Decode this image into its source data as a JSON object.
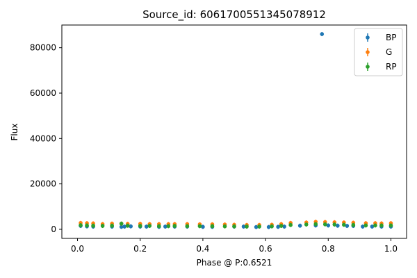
{
  "chart_data": {
    "type": "scatter",
    "title": "Source_id: 6061700551345078912",
    "xlabel": "Phase @ P:0.6521",
    "ylabel": "Flux",
    "xlim": [
      -0.05,
      1.05
    ],
    "ylim": [
      -4000,
      90000
    ],
    "xticks": [
      "0.0",
      "0.2",
      "0.4",
      "0.6",
      "0.8",
      "1.0"
    ],
    "xtick_values": [
      0.0,
      0.2,
      0.4,
      0.6,
      0.8,
      1.0
    ],
    "yticks": [
      "0",
      "20000",
      "40000",
      "60000",
      "80000"
    ],
    "ytick_values": [
      0,
      20000,
      40000,
      60000,
      80000
    ],
    "grid": false,
    "legend_position": "top-right",
    "series": [
      {
        "name": "BP",
        "color": "#1f77b4",
        "x": [
          0.01,
          0.03,
          0.05,
          0.11,
          0.14,
          0.15,
          0.17,
          0.2,
          0.22,
          0.26,
          0.28,
          0.31,
          0.35,
          0.4,
          0.43,
          0.5,
          0.53,
          0.57,
          0.61,
          0.64,
          0.66,
          0.71,
          0.76,
          0.78,
          0.8,
          0.83,
          0.86,
          0.88,
          0.91,
          0.94,
          0.97,
          1.0
        ],
        "y": [
          1500,
          1300,
          1200,
          1200,
          1100,
          1200,
          1300,
          1200,
          1200,
          1100,
          1200,
          1200,
          1200,
          1100,
          1100,
          1200,
          1200,
          1000,
          1000,
          1100,
          1200,
          1600,
          1700,
          86000,
          1700,
          1600,
          1500,
          1500,
          1200,
          1200,
          1200,
          1200
        ]
      },
      {
        "name": "G",
        "color": "#ff7f0e",
        "x": [
          0.01,
          0.03,
          0.05,
          0.08,
          0.11,
          0.14,
          0.16,
          0.2,
          0.23,
          0.26,
          0.29,
          0.31,
          0.35,
          0.39,
          0.43,
          0.47,
          0.5,
          0.54,
          0.58,
          0.62,
          0.65,
          0.68,
          0.73,
          0.76,
          0.79,
          0.82,
          0.85,
          0.88,
          0.92,
          0.95,
          0.97,
          1.0
        ],
        "y": [
          2800,
          2700,
          2600,
          2300,
          2500,
          2500,
          2400,
          2400,
          2300,
          2300,
          2300,
          2300,
          2300,
          2200,
          2200,
          2100,
          2000,
          1900,
          1900,
          2000,
          2300,
          2800,
          3000,
          3300,
          3200,
          3100,
          3000,
          2900,
          2700,
          2700,
          2600,
          2700
        ]
      },
      {
        "name": "RP",
        "color": "#2ca02c",
        "x": [
          0.01,
          0.03,
          0.05,
          0.08,
          0.11,
          0.14,
          0.16,
          0.2,
          0.23,
          0.26,
          0.29,
          0.31,
          0.35,
          0.39,
          0.43,
          0.47,
          0.5,
          0.54,
          0.58,
          0.62,
          0.65,
          0.68,
          0.73,
          0.76,
          0.79,
          0.82,
          0.85,
          0.88,
          0.92,
          0.95,
          0.97,
          1.0
        ],
        "y": [
          1800,
          1700,
          1600,
          1500,
          1600,
          2500,
          1600,
          1500,
          1500,
          1400,
          1400,
          1500,
          1400,
          1400,
          1400,
          1300,
          1300,
          1200,
          1200,
          1300,
          1500,
          1900,
          2100,
          2300,
          2200,
          2100,
          2000,
          1900,
          1700,
          1700,
          1700,
          1700
        ]
      }
    ]
  }
}
